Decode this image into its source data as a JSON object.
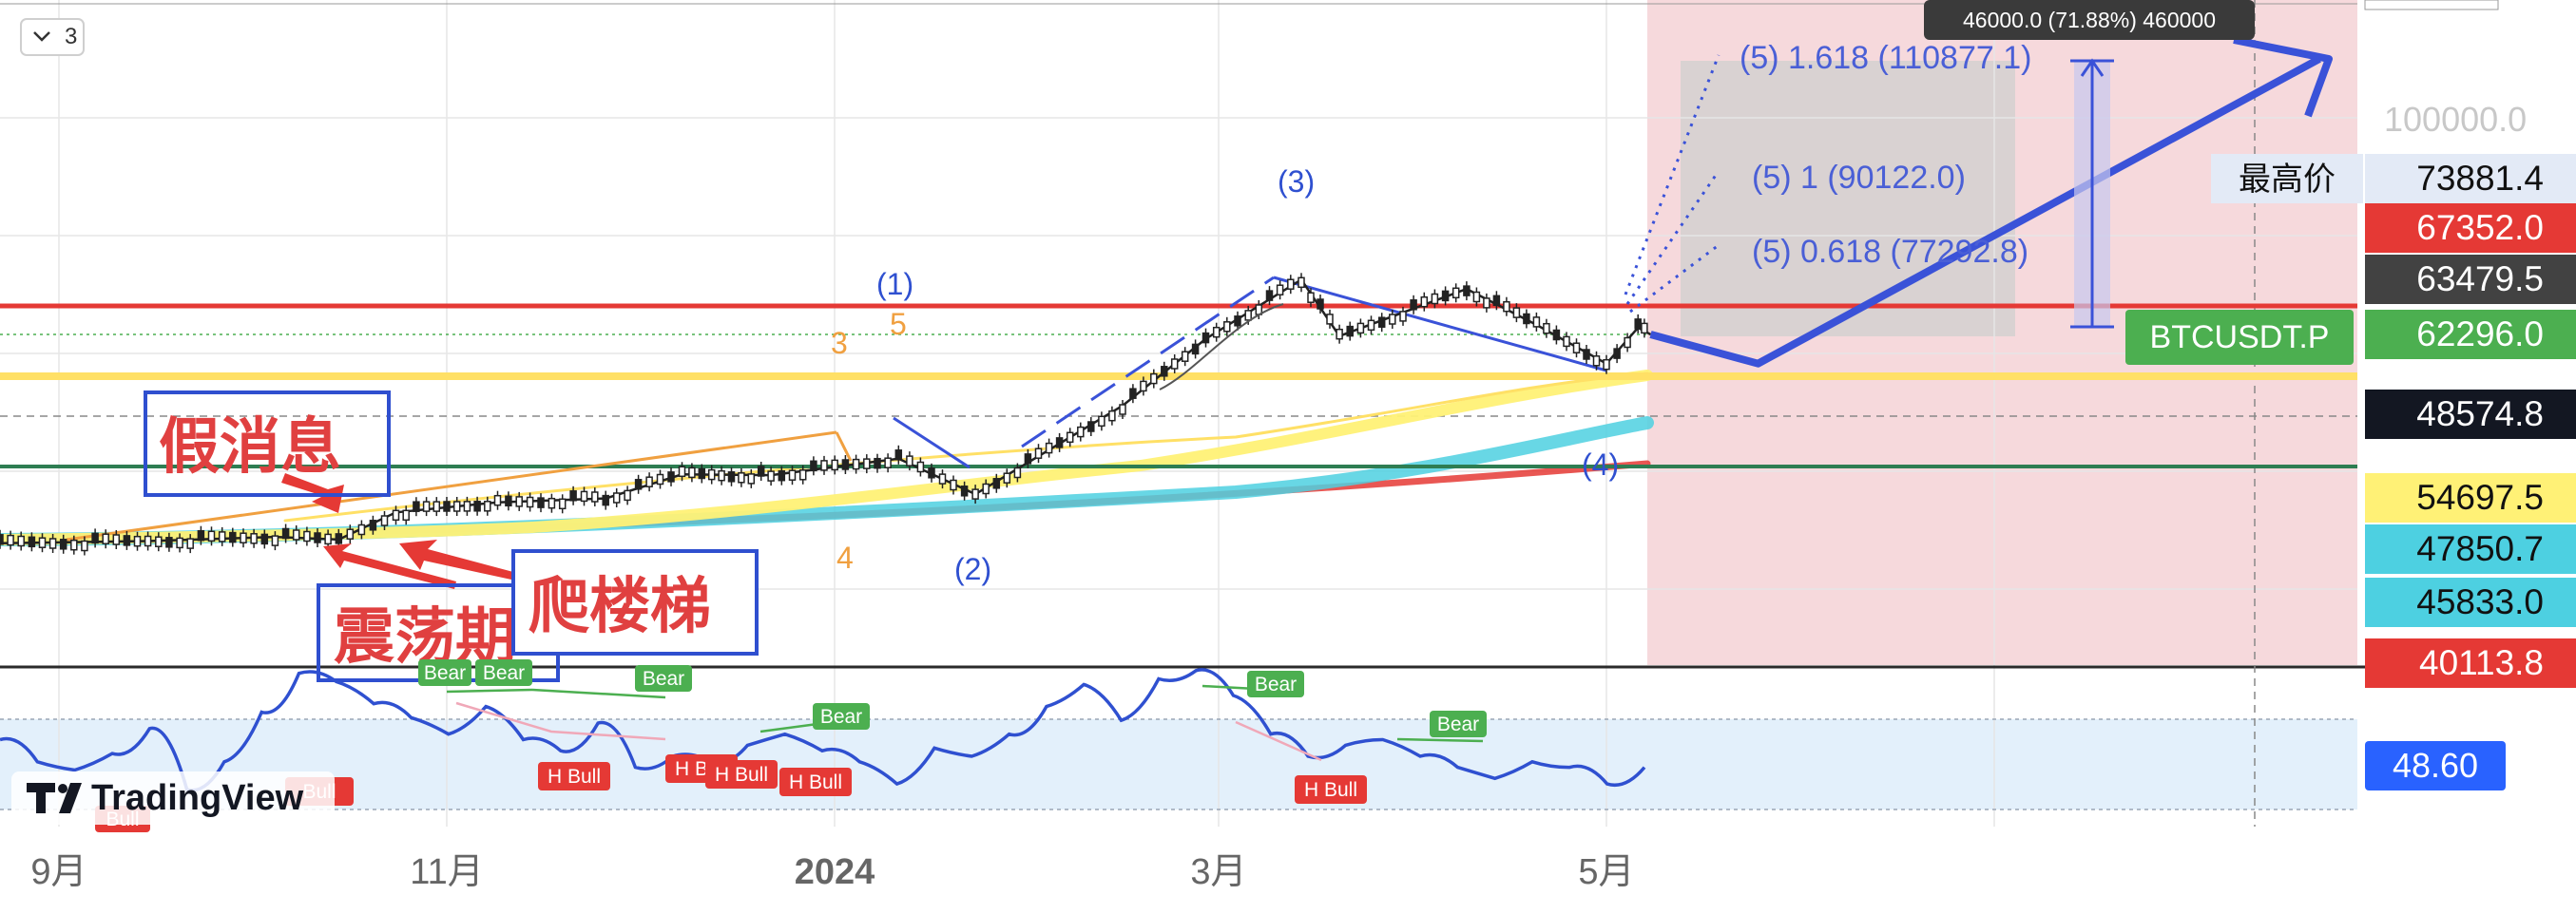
{
  "ui": {
    "interval_badge": "3",
    "brand": "TradingView",
    "crosshair_tooltip": "46000.0 (71.88%) 460000",
    "rsi_value": "48.60",
    "ticker_label": "BTCUSDT.P",
    "accent_colors": {
      "up_red": "#e53935",
      "blue": "#3a52d8",
      "green_tag": "#4caf50",
      "yellow": "#fff176",
      "cyan": "#4dd0e1",
      "pink_zone": "#f6d9dc"
    }
  },
  "chart_data": {
    "type": "candlestick",
    "x_ticks": [
      "9月",
      "11月",
      "2024",
      "3月",
      "5月"
    ],
    "y_label_100k": "100000.0",
    "price_tags": [
      {
        "text": "最高价",
        "value": "73881.4",
        "bg": "#e3eaf6",
        "fg": "#111111"
      },
      {
        "text": "",
        "value": "67352.0",
        "bg": "#e53935",
        "fg": "#ffffff"
      },
      {
        "text": "",
        "value": "63479.5",
        "bg": "#424242",
        "fg": "#ffffff"
      },
      {
        "text": "BTCUSDT.P",
        "value": "62296.0",
        "bg": "#4caf50",
        "fg": "#ffffff"
      },
      {
        "text": "",
        "value": "48574.8",
        "bg": "#131722",
        "fg": "#ffffff"
      },
      {
        "text": "",
        "value": "54697.5",
        "bg": "#fff176",
        "fg": "#111111"
      },
      {
        "text": "",
        "value": "47850.7",
        "bg": "#4dd0e1",
        "fg": "#111111"
      },
      {
        "text": "",
        "value": "45833.0",
        "bg": "#4dd0e1",
        "fg": "#111111"
      },
      {
        "text": "",
        "value": "40113.8",
        "bg": "#e53935",
        "fg": "#ffffff"
      }
    ],
    "fib_targets": [
      "(5) 1.618 (110877.1)",
      "(5) 1 (90122.0)",
      "(5) 0.618 (77292.8)"
    ],
    "wave_labels": [
      "(1)",
      "(2)",
      "(3)",
      "(4)"
    ],
    "sub_wave_labels": [
      "3",
      "5",
      "4"
    ],
    "annotations": [
      "假消息",
      "震荡期",
      "爬楼梯"
    ],
    "rsi_tags": {
      "bear": "Bear",
      "h_bull": "H Bull",
      "bull": "Bull"
    },
    "price_series": [
      {
        "t": "2023-08-25",
        "v": 26050
      },
      {
        "t": "2023-09-15",
        "v": 26600
      },
      {
        "t": "2023-10-05",
        "v": 27700
      },
      {
        "t": "2023-10-15",
        "v": 27000
      },
      {
        "t": "2023-10-24",
        "v": 34000
      },
      {
        "t": "2023-11-09",
        "v": 36600
      },
      {
        "t": "2023-11-26",
        "v": 37600
      },
      {
        "t": "2023-12-08",
        "v": 43800
      },
      {
        "t": "2023-12-22",
        "v": 43600
      },
      {
        "t": "2024-01-11",
        "v": 46600
      },
      {
        "t": "2024-01-23",
        "v": 38700
      },
      {
        "t": "2024-02-15",
        "v": 51800
      },
      {
        "t": "2024-02-28",
        "v": 61500
      },
      {
        "t": "2024-03-14",
        "v": 73000
      },
      {
        "t": "2024-03-20",
        "v": 62000
      },
      {
        "t": "2024-04-09",
        "v": 71000
      },
      {
        "t": "2024-04-20",
        "v": 64000
      },
      {
        "t": "2024-05-01",
        "v": 57000
      },
      {
        "t": "2024-05-06",
        "v": 63500
      },
      {
        "t": "2024-05-08",
        "v": 62296
      }
    ],
    "projection": [
      {
        "t": "2024-05-08",
        "v": 62296
      },
      {
        "t": "2024-05-25",
        "v": 57000
      },
      {
        "t": "2024-08-30",
        "v": 110000
      }
    ],
    "horizontal_levels": [
      {
        "name": "resistance",
        "value": 67352,
        "color": "#e53935"
      },
      {
        "name": "support",
        "value": 45833,
        "color": "#2e7d52"
      }
    ],
    "rsi_series": [
      58,
      50,
      47,
      53,
      62,
      40,
      50,
      68,
      82,
      79,
      71,
      66,
      60,
      70,
      58,
      54,
      64,
      48,
      52,
      50,
      56,
      60,
      54,
      50,
      42,
      55,
      52,
      60,
      70,
      78,
      65,
      80,
      83,
      74,
      60,
      52,
      56,
      58,
      52,
      48,
      44,
      50,
      48,
      42,
      48
    ],
    "rsi_ylim": [
      30,
      85
    ],
    "grid": true
  }
}
